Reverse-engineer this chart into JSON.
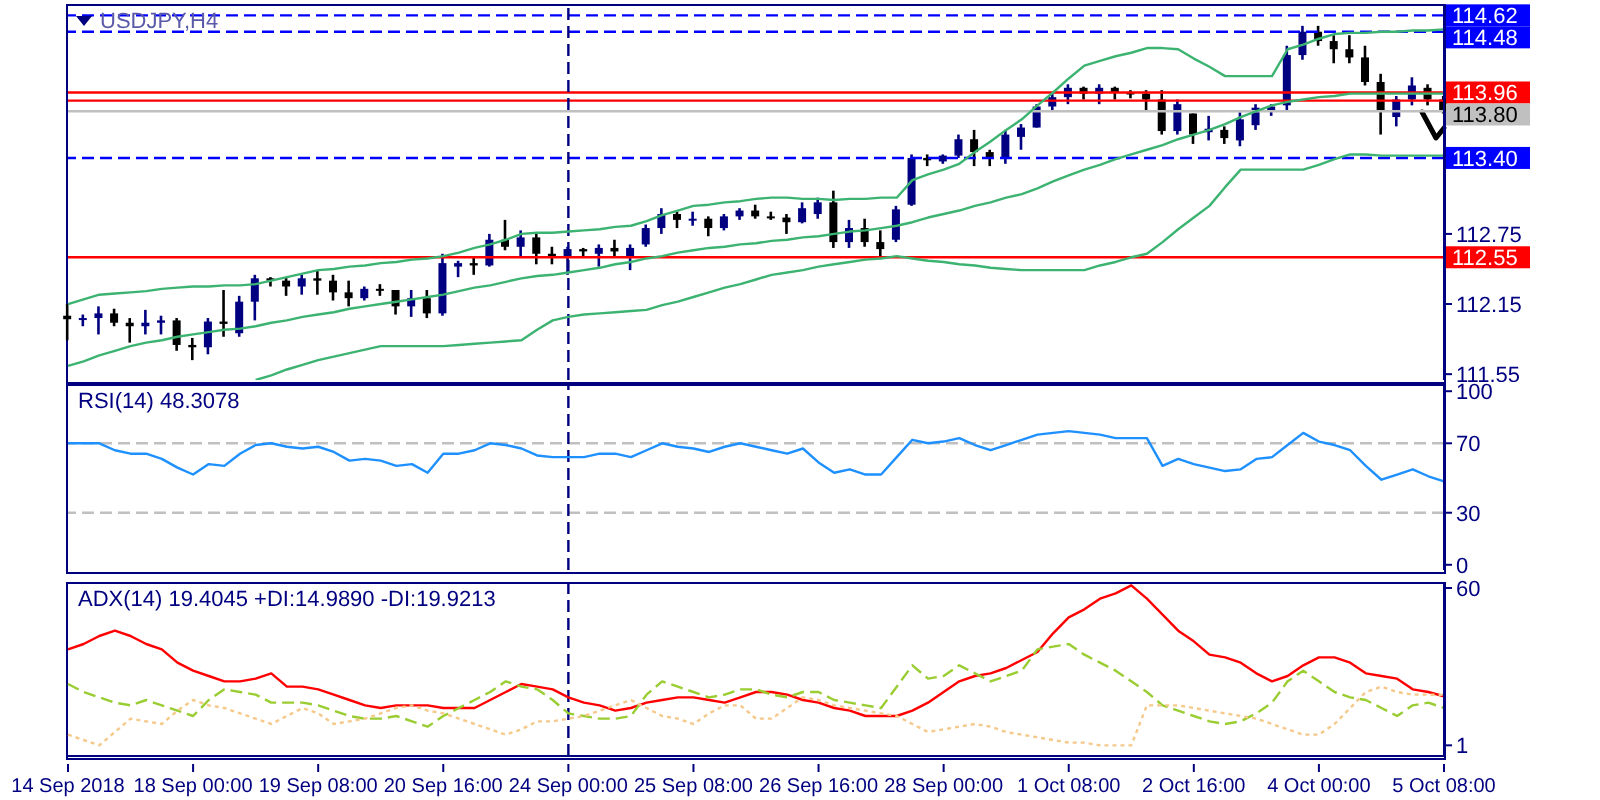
{
  "chart_data": [
    {
      "type": "candlestick",
      "title": "USDJPY,H4",
      "tick_labels": "y",
      "ylim": [
        111.5,
        114.7
      ],
      "yticks": [
        111.55,
        112.15,
        112.75
      ],
      "categories": [
        "14 Sep 2018",
        null,
        null,
        null,
        null,
        null,
        null,
        null,
        "18 Sep 00:00",
        null,
        null,
        null,
        null,
        null,
        null,
        null,
        "19 Sep 08:00",
        null,
        null,
        null,
        null,
        null,
        null,
        null,
        "20 Sep 16:00",
        null,
        null,
        null,
        null,
        null,
        null,
        null,
        "24 Sep 00:00",
        null,
        null,
        null,
        null,
        null,
        null,
        null,
        "25 Sep 08:00",
        null,
        null,
        null,
        null,
        null,
        null,
        null,
        "26 Sep 16:00",
        null,
        null,
        null,
        null,
        null,
        null,
        null,
        "28 Sep 00:00",
        null,
        null,
        null,
        null,
        null,
        null,
        null,
        "1 Oct 08:00",
        null,
        null,
        null,
        null,
        null,
        null,
        null,
        "2 Oct 16:00",
        null,
        null,
        null,
        null,
        null,
        null,
        null,
        "4 Oct 00:00",
        null,
        null,
        null,
        null,
        null,
        null,
        null,
        "5 Oct 08:00"
      ],
      "ohlc": [
        [
          112.05,
          112.15,
          111.84,
          112.02
        ],
        [
          112.02,
          112.06,
          111.96,
          112.03
        ],
        [
          112.03,
          112.13,
          111.89,
          112.07
        ],
        [
          112.07,
          112.11,
          111.96,
          111.99
        ],
        [
          111.99,
          112.03,
          111.82,
          111.96
        ],
        [
          111.96,
          112.1,
          111.89,
          111.99
        ],
        [
          111.99,
          112.05,
          111.89,
          112.01
        ],
        [
          112.01,
          112.03,
          111.75,
          111.8
        ],
        [
          111.8,
          111.86,
          111.67,
          111.78
        ],
        [
          111.78,
          112.03,
          111.72,
          112.0
        ],
        [
          112.0,
          112.27,
          111.87,
          111.98
        ],
        [
          111.9,
          112.22,
          111.87,
          112.17
        ],
        [
          112.17,
          112.4,
          112.01,
          112.37
        ],
        [
          112.37,
          112.38,
          112.3,
          112.35
        ],
        [
          112.35,
          112.38,
          112.22,
          112.3
        ],
        [
          112.3,
          112.4,
          112.23,
          112.37
        ],
        [
          112.37,
          112.44,
          112.23,
          112.35
        ],
        [
          112.35,
          112.4,
          112.18,
          112.25
        ],
        [
          112.25,
          112.35,
          112.13,
          112.2
        ],
        [
          112.2,
          112.3,
          112.18,
          112.28
        ],
        [
          112.28,
          112.32,
          112.22,
          112.27
        ],
        [
          112.27,
          112.27,
          112.06,
          112.13
        ],
        [
          112.13,
          112.27,
          112.04,
          112.2
        ],
        [
          112.2,
          112.27,
          112.03,
          112.07
        ],
        [
          112.07,
          112.58,
          112.05,
          112.5
        ],
        [
          112.47,
          112.52,
          112.38,
          112.5
        ],
        [
          112.5,
          112.56,
          112.4,
          112.48
        ],
        [
          112.48,
          112.75,
          112.47,
          112.7
        ],
        [
          112.7,
          112.87,
          112.61,
          112.64
        ],
        [
          112.64,
          112.78,
          112.56,
          112.72
        ],
        [
          112.72,
          112.76,
          112.49,
          112.58
        ],
        [
          112.58,
          112.64,
          112.49,
          112.55
        ],
        [
          112.55,
          112.64,
          112.4,
          112.62
        ],
        [
          112.62,
          112.63,
          112.56,
          112.6
        ],
        [
          112.58,
          112.66,
          112.47,
          112.63
        ],
        [
          112.63,
          112.7,
          112.56,
          112.6
        ],
        [
          112.55,
          112.66,
          112.44,
          112.63
        ],
        [
          112.66,
          112.83,
          112.64,
          112.8
        ],
        [
          112.8,
          112.97,
          112.75,
          112.92
        ],
        [
          112.92,
          112.94,
          112.8,
          112.87
        ],
        [
          112.87,
          112.94,
          112.82,
          112.88
        ],
        [
          112.88,
          112.9,
          112.73,
          112.8
        ],
        [
          112.8,
          112.92,
          112.78,
          112.9
        ],
        [
          112.9,
          112.97,
          112.87,
          112.95
        ],
        [
          112.95,
          113.0,
          112.88,
          112.9
        ],
        [
          112.9,
          112.94,
          112.87,
          112.89
        ],
        [
          112.89,
          112.92,
          112.75,
          112.85
        ],
        [
          112.85,
          113.02,
          112.84,
          112.97
        ],
        [
          112.92,
          113.06,
          112.88,
          113.02
        ],
        [
          113.02,
          113.12,
          112.63,
          112.68
        ],
        [
          112.68,
          112.87,
          112.63,
          112.8
        ],
        [
          112.8,
          112.88,
          112.64,
          112.68
        ],
        [
          112.68,
          112.78,
          112.56,
          112.62
        ],
        [
          112.7,
          112.99,
          112.68,
          112.96
        ],
        [
          113.0,
          113.43,
          112.99,
          113.4
        ],
        [
          113.4,
          113.43,
          113.33,
          113.38
        ],
        [
          113.37,
          113.43,
          113.35,
          113.42
        ],
        [
          113.42,
          113.6,
          113.4,
          113.56
        ],
        [
          113.56,
          113.64,
          113.33,
          113.45
        ],
        [
          113.45,
          113.47,
          113.33,
          113.4
        ],
        [
          113.4,
          113.64,
          113.35,
          113.6
        ],
        [
          113.58,
          113.69,
          113.47,
          113.66
        ],
        [
          113.66,
          113.86,
          113.66,
          113.84
        ],
        [
          113.84,
          113.95,
          113.81,
          113.92
        ],
        [
          113.92,
          114.03,
          113.86,
          114.0
        ],
        [
          114.0,
          114.01,
          113.9,
          113.95
        ],
        [
          113.95,
          114.03,
          113.86,
          114.0
        ],
        [
          114.0,
          114.01,
          113.9,
          113.96
        ],
        [
          113.96,
          113.98,
          113.91,
          113.95
        ],
        [
          113.95,
          113.98,
          113.81,
          113.9
        ],
        [
          113.9,
          113.98,
          113.6,
          113.63
        ],
        [
          113.63,
          113.9,
          113.6,
          113.86
        ],
        [
          113.78,
          113.78,
          113.52,
          113.6
        ],
        [
          113.62,
          113.76,
          113.55,
          113.65
        ],
        [
          113.64,
          113.67,
          113.52,
          113.57
        ],
        [
          113.55,
          113.79,
          113.5,
          113.73
        ],
        [
          113.68,
          113.86,
          113.64,
          113.83
        ],
        [
          113.8,
          113.86,
          113.76,
          113.84
        ],
        [
          113.85,
          114.36,
          113.81,
          114.28
        ],
        [
          114.28,
          114.53,
          114.24,
          114.48
        ],
        [
          114.48,
          114.53,
          114.36,
          114.4
        ],
        [
          114.4,
          114.45,
          114.21,
          114.33
        ],
        [
          114.33,
          114.45,
          114.21,
          114.26
        ],
        [
          114.26,
          114.36,
          114.02,
          114.05
        ],
        [
          114.05,
          114.12,
          113.6,
          113.8
        ],
        [
          113.75,
          113.93,
          113.67,
          113.9
        ],
        [
          113.9,
          114.09,
          113.85,
          114.02
        ],
        [
          114.0,
          114.03,
          113.85,
          113.9
        ],
        [
          113.9,
          113.93,
          113.78,
          113.8
        ]
      ],
      "colors": [
        "#000000",
        "#000080",
        "#000080",
        "#000000",
        "#000000",
        "#000080",
        "#000080",
        "#000000",
        "#000000",
        "#000080",
        "#000000",
        "#000080",
        "#000080",
        "#000000",
        "#000000",
        "#000080",
        "#000000",
        "#000000",
        "#000000",
        "#000080",
        "#000000",
        "#000000",
        "#000080",
        "#000000",
        "#000080",
        "#000080",
        "#000000",
        "#000080",
        "#000000",
        "#000080",
        "#000000",
        "#000000",
        "#000080",
        "#000000",
        "#000080",
        "#000000",
        "#000080",
        "#000080",
        "#000080",
        "#000000",
        "#000080",
        "#000000",
        "#000080",
        "#000080",
        "#000000",
        "#000000",
        "#000000",
        "#000080",
        "#000080",
        "#000000",
        "#000080",
        "#000000",
        "#000000",
        "#000080",
        "#000080",
        "#000000",
        "#000080",
        "#000080",
        "#000000",
        "#000000",
        "#000080",
        "#000080",
        "#000080",
        "#000080",
        "#000080",
        "#000000",
        "#000080",
        "#000000",
        "#000000",
        "#000000",
        "#000000",
        "#000080",
        "#000000",
        "#000080",
        "#000000",
        "#000080",
        "#000080",
        "#000080",
        "#000080",
        "#000080",
        "#000000",
        "#000000",
        "#000000",
        "#000000",
        "#000000",
        "#000080",
        "#000080",
        "#000000",
        "#000000"
      ],
      "series": [
        {
          "type": "line",
          "color": "#3cb371",
          "values": [
            112.15,
            112.19,
            112.23,
            112.24,
            112.25,
            112.26,
            112.28,
            112.29,
            112.3,
            112.3,
            112.31,
            112.31,
            112.32,
            112.35,
            112.38,
            112.41,
            112.44,
            112.45,
            112.47,
            112.48,
            112.5,
            112.51,
            112.53,
            112.54,
            112.56,
            112.59,
            112.63,
            112.66,
            112.7,
            112.75,
            112.76,
            112.76,
            112.77,
            112.78,
            112.79,
            112.81,
            112.82,
            112.86,
            112.91,
            112.95,
            112.99,
            113.0,
            113.02,
            113.03,
            113.05,
            113.06,
            113.06,
            113.05,
            113.05,
            113.04,
            113.05,
            113.05,
            113.06,
            113.06,
            113.21,
            113.26,
            113.3,
            113.35,
            113.45,
            113.54,
            113.64,
            113.73,
            113.85,
            113.96,
            114.08,
            114.19,
            114.23,
            114.27,
            114.3,
            114.34,
            114.34,
            114.33,
            114.25,
            114.18,
            114.1,
            114.1,
            114.1,
            114.1,
            114.33,
            114.37,
            114.42,
            114.46,
            114.47,
            114.47,
            114.48,
            114.48,
            114.49,
            114.49,
            114.5
          ]
        },
        {
          "type": "line",
          "color": "#3cb371",
          "values": [
            111.62,
            111.66,
            111.71,
            111.75,
            111.79,
            111.82,
            111.84,
            111.87,
            111.89,
            111.91,
            111.93,
            111.94,
            111.96,
            111.99,
            112.01,
            112.04,
            112.06,
            112.08,
            112.11,
            112.13,
            112.15,
            112.17,
            112.19,
            112.21,
            112.23,
            112.26,
            112.29,
            112.31,
            112.34,
            112.37,
            112.39,
            112.4,
            112.42,
            112.44,
            112.46,
            112.49,
            112.51,
            112.54,
            112.56,
            112.59,
            112.61,
            112.63,
            112.64,
            112.66,
            112.67,
            112.69,
            112.7,
            112.72,
            112.73,
            112.75,
            112.77,
            112.78,
            112.8,
            112.82,
            112.85,
            112.89,
            112.92,
            112.95,
            112.99,
            113.02,
            113.06,
            113.09,
            113.14,
            113.2,
            113.25,
            113.3,
            113.34,
            113.39,
            113.43,
            113.47,
            113.51,
            113.56,
            113.6,
            113.64,
            113.69,
            113.75,
            113.8,
            113.85,
            113.88,
            113.9,
            113.92,
            113.93,
            113.95,
            113.95,
            113.95,
            113.95,
            113.95,
            113.95,
            113.95
          ]
        },
        {
          "type": "line",
          "color": "#3cb371",
          "values": [
            null,
            null,
            null,
            null,
            null,
            null,
            null,
            null,
            null,
            null,
            null,
            null,
            111.5,
            111.54,
            111.59,
            111.63,
            111.67,
            111.7,
            111.73,
            111.76,
            111.79,
            111.79,
            111.79,
            111.79,
            111.79,
            111.8,
            111.81,
            111.82,
            111.83,
            111.84,
            111.93,
            112.01,
            112.04,
            112.06,
            112.07,
            112.08,
            112.09,
            112.1,
            112.14,
            112.17,
            112.21,
            112.25,
            112.29,
            112.32,
            112.36,
            112.4,
            112.42,
            112.44,
            112.47,
            112.49,
            112.51,
            112.53,
            112.54,
            112.56,
            112.54,
            112.52,
            112.51,
            112.49,
            112.48,
            112.46,
            112.45,
            112.44,
            112.44,
            112.44,
            112.44,
            112.44,
            112.48,
            112.51,
            112.55,
            112.58,
            112.68,
            112.79,
            112.89,
            112.99,
            113.15,
            113.3,
            113.3,
            113.3,
            113.3,
            113.3,
            113.34,
            113.39,
            113.43,
            113.43,
            113.42,
            113.42,
            113.42,
            113.42,
            113.42
          ]
        }
      ],
      "ref_lines": [
        {
          "axis": "y",
          "value": 114.62,
          "label": "114.62",
          "color": "#0000ff",
          "line_style": "dashed"
        },
        {
          "axis": "y",
          "value": 114.48,
          "label": "114.48",
          "color": "#0000ff",
          "line_style": "dashed"
        },
        {
          "axis": "y",
          "value": 113.96,
          "label": "113.96",
          "color": "#ff0000",
          "line_style": "solid"
        },
        {
          "axis": "y",
          "value": 113.89,
          "label": null,
          "color": "#ff0000",
          "line_style": "solid"
        },
        {
          "axis": "y",
          "value": 113.8,
          "label": "113.80",
          "color": "#c0c0c0",
          "line_style": "solid"
        },
        {
          "axis": "y",
          "value": 113.4,
          "label": "113.40",
          "color": "#0000ff",
          "line_style": "dashed"
        },
        {
          "axis": "y",
          "value": 112.55,
          "label": "112.55",
          "color": "#ff0000",
          "line_style": "solid"
        },
        {
          "axis": "x",
          "value": "24 Sep 00:00",
          "label": null,
          "color": "#000080",
          "line_style": "dashed"
        }
      ]
    },
    {
      "type": "line",
      "title": "RSI(14) 48.3078",
      "tick_labels": "y",
      "ylim": [
        -3,
        103
      ],
      "yticks": [
        0,
        30,
        70,
        100
      ],
      "categories": [
        "14 Sep 2018",
        null,
        null,
        null,
        null,
        null,
        null,
        null,
        "18 Sep 00:00",
        null,
        null,
        null,
        null,
        null,
        null,
        null,
        "19 Sep 08:00",
        null,
        null,
        null,
        null,
        null,
        null,
        null,
        "20 Sep 16:00",
        null,
        null,
        null,
        null,
        null,
        null,
        null,
        "24 Sep 00:00",
        null,
        null,
        null,
        null,
        null,
        null,
        null,
        "25 Sep 08:00",
        null,
        null,
        null,
        null,
        null,
        null,
        null,
        "26 Sep 16:00",
        null,
        null,
        null,
        null,
        null,
        null,
        null,
        "28 Sep 00:00",
        null,
        null,
        null,
        null,
        null,
        null,
        null,
        "1 Oct 08:00",
        null,
        null,
        null,
        null,
        null,
        null,
        null,
        "2 Oct 16:00",
        null,
        null,
        null,
        null,
        null,
        null,
        null,
        "4 Oct 00:00",
        null,
        null,
        null,
        null,
        null,
        null,
        null,
        "5 Oct 08:00"
      ],
      "series": [
        {
          "color": "#1e90ff",
          "values": [
            70,
            70,
            70,
            66,
            64,
            64,
            61,
            56,
            52,
            58,
            57,
            64,
            69,
            70,
            68,
            67,
            68,
            65,
            60,
            61,
            60,
            57,
            58,
            53,
            64,
            64,
            66,
            70,
            69,
            67,
            63,
            62,
            62,
            62,
            64,
            64,
            62,
            66,
            70,
            68,
            67,
            65,
            68,
            70,
            68,
            66,
            64,
            67,
            59,
            53,
            55,
            52,
            52,
            62,
            72,
            70,
            71,
            73,
            69,
            66,
            69,
            72,
            75,
            76,
            77,
            76,
            75,
            73,
            73,
            73,
            57,
            61,
            58,
            56,
            54,
            55,
            61,
            62,
            69,
            76,
            71,
            69,
            66,
            57,
            49,
            52,
            55,
            51,
            48
          ]
        }
      ],
      "ref_lines": [
        {
          "axis": "y",
          "value": 70,
          "label": null,
          "color": "#c0c0c0",
          "line_style": "dashed"
        },
        {
          "axis": "y",
          "value": 30,
          "label": null,
          "color": "#c0c0c0",
          "line_style": "dashed"
        },
        {
          "axis": "x",
          "value": "24 Sep 00:00",
          "label": null,
          "color": "#000080",
          "line_style": "dashed"
        }
      ]
    },
    {
      "type": "line",
      "title": "ADX(14) 19.4045 +DI:14.9890 -DI:19.9213",
      "ylim": [
        -3,
        61.5
      ],
      "yticks": [
        1,
        60
      ],
      "categories": [
        "14 Sep 2018",
        null,
        null,
        null,
        null,
        null,
        null,
        null,
        "18 Sep 00:00",
        null,
        null,
        null,
        null,
        null,
        null,
        null,
        "19 Sep 08:00",
        null,
        null,
        null,
        null,
        null,
        null,
        null,
        "20 Sep 16:00",
        null,
        null,
        null,
        null,
        null,
        null,
        null,
        "24 Sep 00:00",
        null,
        null,
        null,
        null,
        null,
        null,
        null,
        "25 Sep 08:00",
        null,
        null,
        null,
        null,
        null,
        null,
        null,
        "26 Sep 16:00",
        null,
        null,
        null,
        null,
        null,
        null,
        null,
        "28 Sep 00:00",
        null,
        null,
        null,
        null,
        null,
        null,
        null,
        "1 Oct 08:00",
        null,
        null,
        null,
        null,
        null,
        null,
        null,
        "2 Oct 16:00",
        null,
        null,
        null,
        null,
        null,
        null,
        null,
        "4 Oct 00:00",
        null,
        null,
        null,
        null,
        null,
        null,
        null,
        "5 Oct 08:00"
      ],
      "series": [
        {
          "color": "#ff0000",
          "line_style": "solid",
          "values": [
            37,
            39,
            42,
            44,
            42,
            39,
            37,
            32,
            29,
            27,
            25,
            25,
            26,
            28,
            23,
            23,
            22,
            20,
            18,
            16,
            15,
            16,
            16,
            16,
            15,
            15,
            15,
            18,
            21,
            24,
            23,
            22,
            19,
            17,
            16,
            14,
            15,
            17,
            18,
            19,
            19,
            18,
            17,
            19,
            21,
            21,
            20,
            18,
            17,
            15,
            14,
            12,
            12,
            12,
            14,
            17,
            21,
            25,
            27,
            28,
            30,
            33,
            36,
            43,
            49,
            52,
            56,
            58,
            61,
            56,
            50,
            44,
            40,
            35,
            34,
            32,
            28,
            25,
            27,
            31,
            34,
            34,
            32,
            28,
            27,
            26,
            22,
            21,
            19.4
          ]
        },
        {
          "color": "#9acd32",
          "line_style": "dashed",
          "values": [
            24,
            21,
            19,
            17,
            16,
            18,
            16,
            14,
            12,
            18,
            22,
            21,
            20,
            17,
            17,
            17,
            16,
            14,
            12,
            11,
            11,
            12,
            10,
            8,
            12,
            15,
            18,
            21,
            25,
            23,
            22,
            18,
            13,
            12,
            11,
            11,
            12,
            20,
            25,
            23,
            21,
            19,
            20,
            22,
            22,
            20,
            19,
            21,
            21,
            18,
            17,
            16,
            15,
            23,
            31,
            26,
            27,
            31,
            28,
            25,
            27,
            29,
            37,
            38,
            39,
            35,
            32,
            29,
            25,
            21,
            16,
            14,
            12,
            10,
            9,
            10,
            13,
            17,
            25,
            29,
            25,
            21,
            19,
            18,
            15,
            12,
            16,
            17,
            15
          ]
        },
        {
          "color": "#f5c98a",
          "line_style": "dotted",
          "values": [
            5,
            3,
            1,
            6,
            11,
            10,
            9,
            14,
            18,
            16,
            15,
            13,
            11,
            9,
            12,
            15,
            13,
            9,
            10,
            11,
            13,
            15,
            16,
            14,
            13,
            11,
            9,
            7,
            5,
            7,
            10,
            10,
            11,
            12,
            14,
            16,
            18,
            15,
            12,
            11,
            9,
            13,
            16,
            16,
            11,
            11,
            15,
            19,
            18,
            16,
            15,
            14,
            13,
            12,
            9,
            6,
            7,
            8,
            9,
            8,
            6,
            5,
            4,
            3,
            2,
            2,
            1,
            1,
            1,
            16,
            16,
            16,
            15,
            14,
            13,
            12,
            11,
            9,
            7,
            5,
            5,
            9,
            15,
            21,
            23,
            21,
            20,
            20,
            19.9
          ]
        }
      ],
      "ref_lines": [
        {
          "axis": "x",
          "value": "24 Sep 00:00",
          "label": null,
          "color": "#000080",
          "line_style": "dashed"
        }
      ]
    }
  ]
}
